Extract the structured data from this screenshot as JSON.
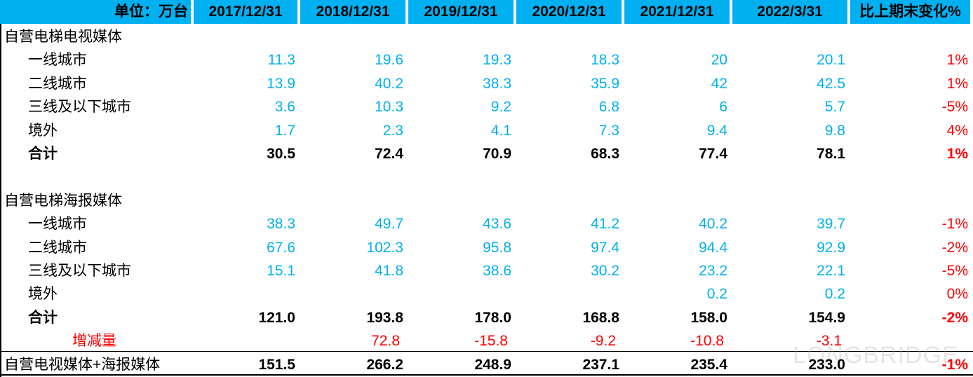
{
  "table": {
    "header": [
      "单位：万台",
      "2017/12/31",
      "2018/12/31",
      "2019/12/31",
      "2020/12/31",
      "2021/12/31",
      "2022/3/31",
      "比上期末变化%"
    ],
    "sections": [
      {
        "title": "自营电梯电视媒体",
        "rows": [
          [
            "一线城市",
            "11.3",
            "19.6",
            "19.3",
            "18.3",
            "20",
            "20.1",
            "1%"
          ],
          [
            "二线城市",
            "13.9",
            "40.2",
            "38.3",
            "35.9",
            "42",
            "42.5",
            "1%"
          ],
          [
            "三线及以下城市",
            "3.6",
            "10.3",
            "9.2",
            "6.8",
            "6",
            "5.7",
            "-5%"
          ],
          [
            "境外",
            "1.7",
            "2.3",
            "4.1",
            "7.3",
            "9.4",
            "9.8",
            "4%"
          ],
          [
            "合计",
            "30.5",
            "72.4",
            "70.9",
            "68.3",
            "77.4",
            "78.1",
            "1%"
          ]
        ]
      },
      {
        "title": "自营电梯海报媒体",
        "rows": [
          [
            "一线城市",
            "38.3",
            "49.7",
            "43.6",
            "41.2",
            "40.2",
            "39.7",
            "-1%"
          ],
          [
            "二线城市",
            "67.6",
            "102.3",
            "95.8",
            "97.4",
            "94.4",
            "92.9",
            "-2%"
          ],
          [
            "三线及以下城市",
            "15.1",
            "41.8",
            "38.6",
            "30.2",
            "23.2",
            "22.1",
            "-5%"
          ],
          [
            "境外",
            null,
            null,
            null,
            null,
            "0.2",
            "0.2",
            "0%"
          ],
          [
            "合计",
            "121.0",
            "193.8",
            "178.0",
            "168.8",
            "158.0",
            "154.9",
            "-2%"
          ],
          [
            "增减量",
            null,
            "72.8",
            "-15.8",
            "-9.2",
            "-10.8",
            "-3.1",
            null
          ]
        ]
      }
    ],
    "total": [
      "自营电视媒体+海报媒体",
      "151.5",
      "266.2",
      "248.9",
      "237.1",
      "235.4",
      "233.0",
      "-1%"
    ],
    "watermark": "LONGBRIDGE"
  }
}
